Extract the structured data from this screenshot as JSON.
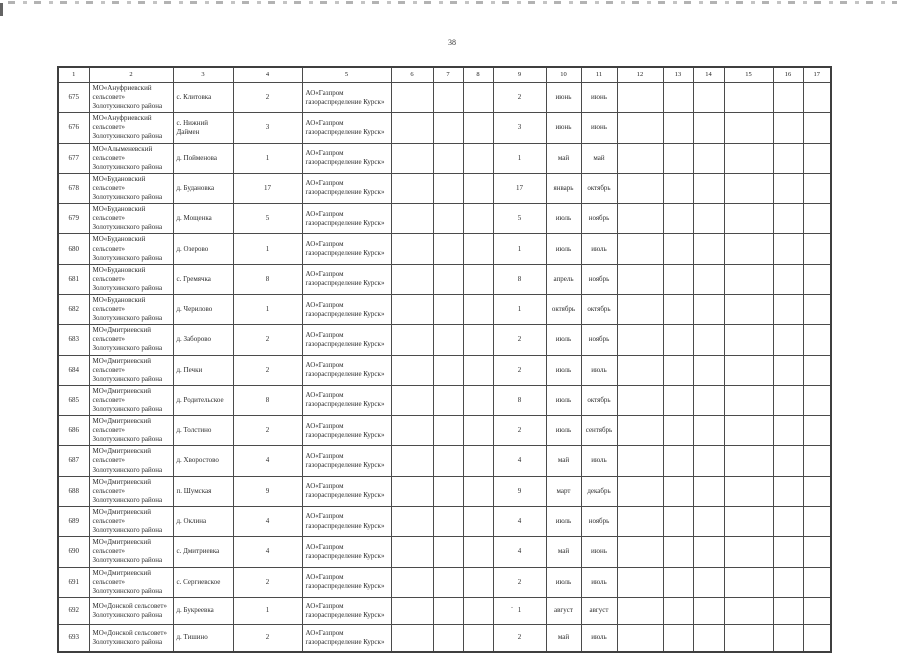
{
  "page": {
    "number": "38",
    "footer_mark": "."
  },
  "table": {
    "headers": [
      "1",
      "2",
      "3",
      "4",
      "5",
      "6",
      "7",
      "8",
      "9",
      "10",
      "11",
      "12",
      "13",
      "14",
      "15",
      "16",
      "17"
    ],
    "rows": [
      {
        "num": "675",
        "municipality": "МО«Ануфриевский сельсовет» Золотухинского района",
        "locality": "с. Клитовка",
        "count": "2",
        "operator": "АО«Газпром газораспределение Курск»",
        "count2": "2",
        "start": "июнь",
        "end": "июнь"
      },
      {
        "num": "676",
        "municipality": "МО«Ануфриевский сельсовет» Золотухинского района",
        "locality": "с. Нижний Даймен",
        "count": "3",
        "operator": "АО«Газпром газораспределение Курск»",
        "count2": "3",
        "start": "июнь",
        "end": "июнь"
      },
      {
        "num": "677",
        "municipality": "МО«Алыменевский сельсовет» Золотухинского района",
        "locality": "д. Пойменова",
        "count": "1",
        "operator": "АО«Газпром газораспределение Курск»",
        "count2": "1",
        "start": "май",
        "end": "май"
      },
      {
        "num": "678",
        "municipality": "МО«Будановский сельсовет» Золотухинского района",
        "locality": "д. Будановка",
        "count": "17",
        "operator": "АО«Газпром газораспределение Курск»",
        "count2": "17",
        "start": "январь",
        "end": "октябрь"
      },
      {
        "num": "679",
        "municipality": "МО«Будановский сельсовет» Золотухинского района",
        "locality": "д. Мощенка",
        "count": "5",
        "operator": "АО«Газпром газораспределение Курск»",
        "count2": "5",
        "start": "июль",
        "end": "ноябрь"
      },
      {
        "num": "680",
        "municipality": "МО«Будановский сельсовет» Золотухинского района",
        "locality": "д. Озерово",
        "count": "1",
        "operator": "АО«Газпром газораспределение Курск»",
        "count2": "1",
        "start": "июль",
        "end": "июль"
      },
      {
        "num": "681",
        "municipality": "МО«Будановский сельсовет» Золотухинского района",
        "locality": "с. Гремячка",
        "count": "8",
        "operator": "АО«Газпром газораспределение Курск»",
        "count2": "8",
        "start": "апрель",
        "end": "ноябрь"
      },
      {
        "num": "682",
        "municipality": "МО«Будановский сельсовет» Золотухинского района",
        "locality": "д. Черилово",
        "count": "1",
        "operator": "АО«Газпром газораспределение Курск»",
        "count2": "1",
        "start": "октябрь",
        "end": "октябрь"
      },
      {
        "num": "683",
        "municipality": "МО«Дмитриевский сельсовет» Золотухинского района",
        "locality": "д. Заборово",
        "count": "2",
        "operator": "АО«Газпром газораспределение Курск»",
        "count2": "2",
        "start": "июль",
        "end": "ноябрь"
      },
      {
        "num": "684",
        "municipality": "МО«Дмитриевский сельсовет» Золотухинского района",
        "locality": "д. Печки",
        "count": "2",
        "operator": "АО«Газпром газораспределение Курск»",
        "count2": "2",
        "start": "июль",
        "end": "июль"
      },
      {
        "num": "685",
        "municipality": "МО«Дмитриевский сельсовет» Золотухинского района",
        "locality": "д. Родительское",
        "count": "8",
        "operator": "АО«Газпром газораспределение Курск»",
        "count2": "8",
        "start": "июль",
        "end": "октябрь"
      },
      {
        "num": "686",
        "municipality": "МО«Дмитриевский сельсовет» Золотухинского района",
        "locality": "д. Толстино",
        "count": "2",
        "operator": "АО«Газпром газораспределение Курск»",
        "count2": "2",
        "start": "июль",
        "end": "сентябрь"
      },
      {
        "num": "687",
        "municipality": "МО«Дмитриевский сельсовет» Золотухинского района",
        "locality": "д. Хворостово",
        "count": "4",
        "operator": "АО«Газпром газораспределение Курск»",
        "count2": "4",
        "start": "май",
        "end": "июль"
      },
      {
        "num": "688",
        "municipality": "МО«Дмитриевский сельсовет» Золотухинского района",
        "locality": "п. Шумская",
        "count": "9",
        "operator": "АО«Газпром газораспределение Курск»",
        "count2": "9",
        "start": "март",
        "end": "декабрь"
      },
      {
        "num": "689",
        "municipality": "МО«Дмитриевский сельсовет» Золотухинского района",
        "locality": "д. Оклина",
        "count": "4",
        "operator": "АО«Газпром газораспределение Курск»",
        "count2": "4",
        "start": "июль",
        "end": "ноябрь"
      },
      {
        "num": "690",
        "municipality": "МО«Дмитриевский сельсовет» Золотухинского района",
        "locality": "с. Дмитриевка",
        "count": "4",
        "operator": "АО«Газпром газораспределение Курск»",
        "count2": "4",
        "start": "май",
        "end": "июнь"
      },
      {
        "num": "691",
        "municipality": "МО«Дмитриевский сельсовет» Золотухинского района",
        "locality": "с. Сергиевское",
        "count": "2",
        "operator": "АО«Газпром газораспределение Курск»",
        "count2": "2",
        "start": "июль",
        "end": "июль"
      },
      {
        "num": "692",
        "municipality": "МО«Донской сельсовет» Золотухинского района",
        "locality": "д. Букреевка",
        "count": "1",
        "operator": "АО«Газпром газораспределение Курск»",
        "count2": "1",
        "start": "август",
        "end": "август"
      },
      {
        "num": "693",
        "municipality": "МО«Донской сельсовет» Золотухинского района",
        "locality": "д. Тишино",
        "count": "2",
        "operator": "АО«Газпром газораспределение Курск»",
        "count2": "2",
        "start": "май",
        "end": "июль"
      }
    ]
  }
}
